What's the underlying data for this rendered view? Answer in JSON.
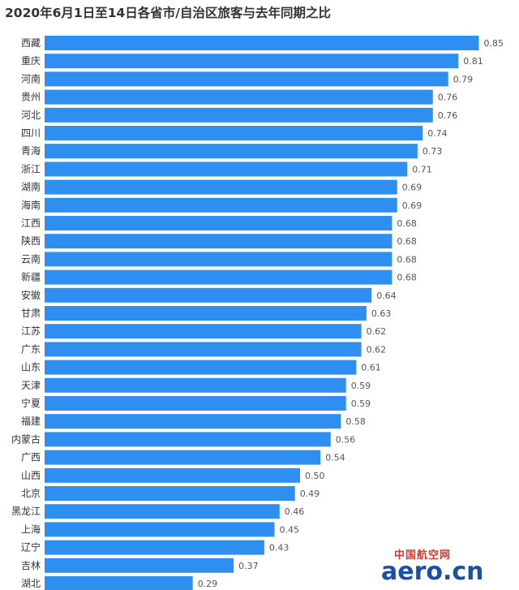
{
  "chart_data": {
    "type": "bar",
    "orientation": "horizontal",
    "title": "2020年6月1日至14日各省市/自治区旅客与去年同期之比",
    "categories": [
      "西藏",
      "重庆",
      "河南",
      "贵州",
      "河北",
      "四川",
      "青海",
      "浙江",
      "湖南",
      "海南",
      "江西",
      "陕西",
      "云南",
      "新疆",
      "安徽",
      "甘肃",
      "江苏",
      "广东",
      "山东",
      "天津",
      "宁夏",
      "福建",
      "内蒙古",
      "广西",
      "山西",
      "北京",
      "黑龙江",
      "上海",
      "辽宁",
      "吉林",
      "湖北"
    ],
    "values": [
      0.85,
      0.81,
      0.79,
      0.76,
      0.76,
      0.74,
      0.73,
      0.71,
      0.69,
      0.69,
      0.68,
      0.68,
      0.68,
      0.68,
      0.64,
      0.63,
      0.62,
      0.62,
      0.61,
      0.59,
      0.59,
      0.58,
      0.56,
      0.54,
      0.5,
      0.49,
      0.46,
      0.45,
      0.43,
      0.37,
      0.29
    ],
    "value_labels": [
      "0.85",
      "0.81",
      "0.79",
      "0.76",
      "0.76",
      "0.74",
      "0.73",
      "0.71",
      "0.69",
      "0.69",
      "0.68",
      "0.68",
      "0.68",
      "0.68",
      "0.64",
      "0.63",
      "0.62",
      "0.62",
      "0.61",
      "0.59",
      "0.59",
      "0.58",
      "0.56",
      "0.54",
      "0.50",
      "0.49",
      "0.46",
      "0.45",
      "0.43",
      "0.37",
      "0.29"
    ],
    "bar_color": "#2e8ff0",
    "grid": false,
    "legend": "none"
  },
  "watermark": {
    "cn": "中国航空网",
    "en": "aero.cn"
  }
}
